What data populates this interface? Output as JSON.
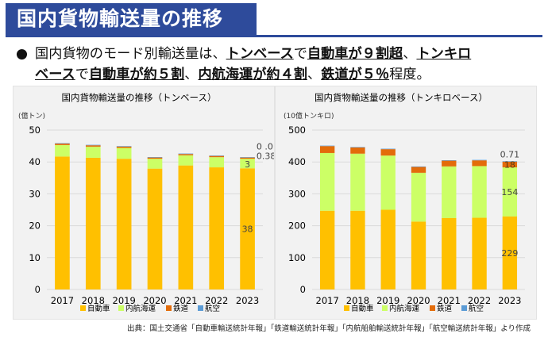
{
  "header": {
    "title": "国内貨物輸送量の推移"
  },
  "summary": {
    "bullet": "●",
    "line1_parts": [
      {
        "text": "国内貨物のモード別輸送量は、",
        "em": false
      },
      {
        "text": "トンベース",
        "em": true
      },
      {
        "text": "で",
        "em": false
      },
      {
        "text": "自動車が９割超",
        "em": true
      },
      {
        "text": "、",
        "em": false
      },
      {
        "text": "トンキロ",
        "em": true
      }
    ],
    "line2_parts": [
      {
        "text": "ベース",
        "em": true
      },
      {
        "text": "で",
        "em": false
      },
      {
        "text": "自動車が約５割",
        "em": true
      },
      {
        "text": "、",
        "em": false
      },
      {
        "text": "内航海運が約４割",
        "em": true
      },
      {
        "text": "、",
        "em": false
      },
      {
        "text": "鉄道が５％",
        "em": true
      },
      {
        "text": "程度。",
        "em": false
      }
    ]
  },
  "colors": {
    "auto": "#ffc000",
    "coastal": "#ccff66",
    "rail": "#e36c0a",
    "air": "#5b9bd5",
    "grid": "#d9d9d9"
  },
  "legend_labels": [
    "自動車",
    "内航海運",
    "鉄道",
    "航空"
  ],
  "chart_data": [
    {
      "type": "bar",
      "stacked": true,
      "title": "国内貨物輸送量の推移（トンベース）",
      "unit_label": "(億トン)",
      "categories": [
        "2017",
        "2018",
        "2019",
        "2020",
        "2021",
        "2022",
        "2023"
      ],
      "ylim": [
        0,
        50
      ],
      "yticks": [
        0,
        10,
        20,
        30,
        40,
        50
      ],
      "series": [
        {
          "name": "自動車",
          "values": [
            41.7,
            41.3,
            41.0,
            37.9,
            38.9,
            38.3,
            38
          ]
        },
        {
          "name": "内航海運",
          "values": [
            3.6,
            3.5,
            3.4,
            3.1,
            3.2,
            3.2,
            3
          ]
        },
        {
          "name": "鉄道",
          "values": [
            0.45,
            0.42,
            0.43,
            0.39,
            0.39,
            0.38,
            0.38
          ]
        },
        {
          "name": "航空",
          "values": [
            0.01,
            0.01,
            0.01,
            0.005,
            0.005,
            0.01,
            0.01
          ]
        }
      ],
      "data_labels": [
        {
          "category": "2023",
          "series": "航空",
          "text": "0 .01"
        },
        {
          "category": "2023",
          "series": "鉄道",
          "text": "0.38"
        },
        {
          "category": "2023",
          "series": "内航海運",
          "text": "3"
        },
        {
          "category": "2023",
          "series": "自動車",
          "text": "38"
        }
      ],
      "legend_position": "bottom",
      "grid": true
    },
    {
      "type": "bar",
      "stacked": true,
      "title": "国内貨物輸送量の推移（トンキロベース）",
      "unit_label": "(10億トンキロ)",
      "categories": [
        "2017",
        "2018",
        "2019",
        "2020",
        "2021",
        "2022",
        "2023"
      ],
      "ylim": [
        0,
        500
      ],
      "yticks": [
        0,
        100,
        200,
        300,
        400,
        500
      ],
      "series": [
        {
          "name": "自動車",
          "values": [
            247,
            247,
            250,
            213,
            224,
            225,
            229
          ]
        },
        {
          "name": "内航海運",
          "values": [
            181,
            179,
            170,
            153,
            162,
            162,
            154
          ]
        },
        {
          "name": "鉄道",
          "values": [
            21.7,
            19.4,
            20.0,
            18.3,
            18.0,
            18.0,
            18
          ]
        },
        {
          "name": "航空",
          "values": [
            1.0,
            0.9,
            0.9,
            0.5,
            0.6,
            0.7,
            0.71
          ]
        }
      ],
      "data_labels": [
        {
          "category": "2023",
          "series": "航空",
          "text": "0.71"
        },
        {
          "category": "2023",
          "series": "鉄道",
          "text": "18"
        },
        {
          "category": "2023",
          "series": "内航海運",
          "text": "154"
        },
        {
          "category": "2023",
          "series": "自動車",
          "text": "229"
        }
      ],
      "legend_position": "bottom",
      "grid": true
    }
  ],
  "source": "出典：国土交通省「自動車輸送統計年報」「鉄道輸送統計年報」「内航船舶輸送統計年報」「航空輸送統計年報」より作成"
}
